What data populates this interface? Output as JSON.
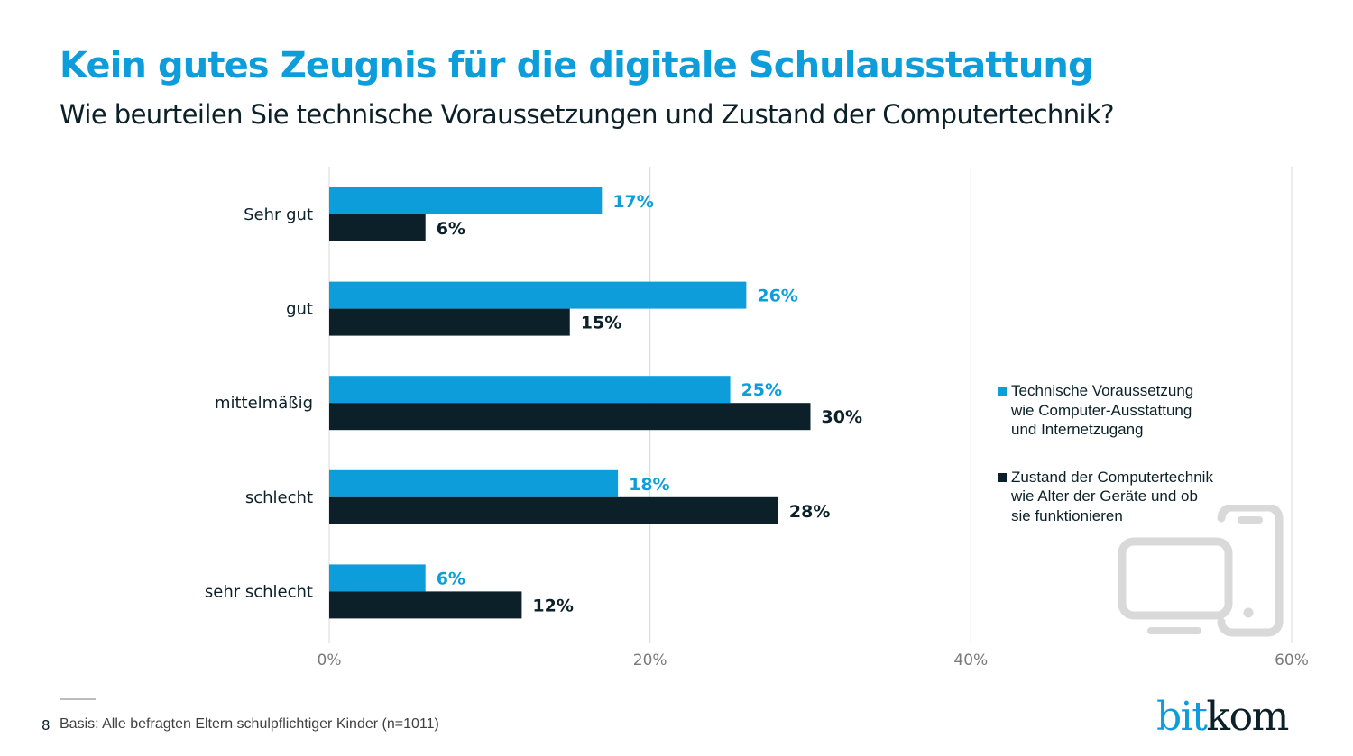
{
  "header": {
    "title": "Kein gutes Zeugnis für die digitale Schulausstattung",
    "subtitle": "Wie beurteilen Sie technische Voraussetzungen und Zustand der Computertechnik?"
  },
  "colors": {
    "accent": "#0d9ddb",
    "dark": "#0b2028",
    "grid": "#d9d9d9",
    "icon": "#d9d9d9"
  },
  "chart_data": {
    "type": "bar",
    "orientation": "horizontal",
    "title": "Kein gutes Zeugnis für die digitale Schulausstattung",
    "subtitle": "Wie beurteilen Sie technische Voraussetzungen und Zustand der Computertechnik?",
    "xlabel": "",
    "ylabel": "",
    "categories": [
      "Sehr gut",
      "gut",
      "mittelmäßig",
      "schlecht",
      "sehr schlecht"
    ],
    "series": [
      {
        "name": "Technische Voraussetzung wie Computer-Ausstattung und Internetzugang",
        "color": "#0d9ddb",
        "values": [
          17,
          26,
          25,
          18,
          6
        ],
        "labels": [
          "17%",
          "26%",
          "25%",
          "18%",
          "6%"
        ]
      },
      {
        "name": "Zustand der Computertechnik wie Alter der Geräte und ob sie funktionieren",
        "color": "#0b2028",
        "values": [
          6,
          15,
          30,
          28,
          12
        ],
        "labels": [
          "6%",
          "15%",
          "30%",
          "28%",
          "12%"
        ]
      }
    ],
    "xlim": [
      0,
      60
    ],
    "xticks": [
      0,
      20,
      40,
      60
    ],
    "xtick_labels": [
      "0%",
      "20%",
      "40%",
      "60%"
    ],
    "grid": true,
    "legend_position": "right"
  },
  "legend": {
    "items": [
      {
        "lines": [
          "Technische Voraussetzung",
          "wie Computer-Ausstattung",
          "und Internetzugang"
        ]
      },
      {
        "lines": [
          "Zustand der Computertechnik",
          "wie Alter der Geräte und ob",
          "sie funktionieren"
        ]
      }
    ]
  },
  "footer": {
    "page_number": "8",
    "note": "Basis: Alle befragten Eltern schulpflichtiger Kinder (n=1011)",
    "logo_part1": "bit",
    "logo_part2": "kom"
  },
  "icons": {
    "decoration": "devices-icon"
  }
}
